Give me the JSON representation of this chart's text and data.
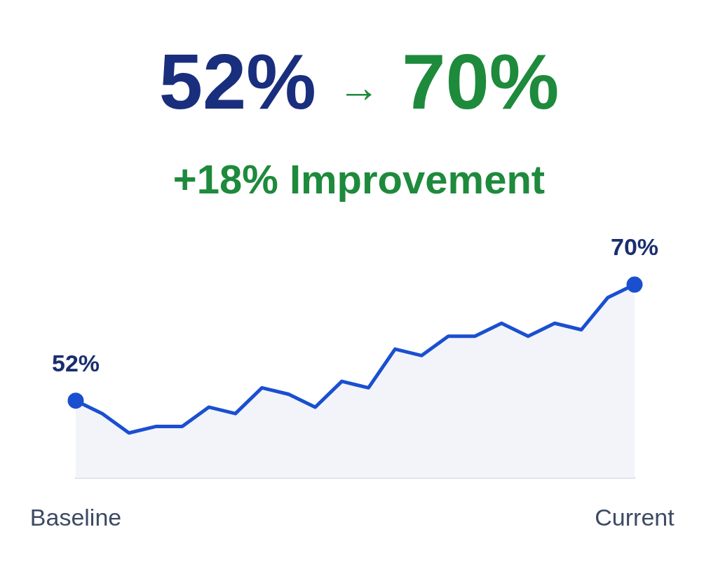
{
  "chart_data": {
    "type": "area",
    "title": "52% → 70%",
    "subtitle": "+18% Improvement",
    "categories": [
      "Baseline",
      null,
      null,
      null,
      null,
      null,
      null,
      null,
      null,
      null,
      null,
      null,
      null,
      null,
      null,
      null,
      null,
      null,
      null,
      null,
      null,
      "Current"
    ],
    "values": [
      52,
      50,
      47,
      48,
      48,
      51,
      50,
      54,
      53,
      51,
      55,
      54,
      60,
      59,
      62,
      62,
      64,
      62,
      64,
      63,
      68,
      70
    ],
    "value_labels": [
      "52%",
      null,
      null,
      null,
      null,
      null,
      null,
      null,
      null,
      null,
      null,
      null,
      null,
      null,
      null,
      null,
      null,
      null,
      null,
      null,
      null,
      "70%"
    ],
    "color": "#1a4fd0",
    "grid": false,
    "legend": false,
    "line_style": "solid",
    "tick_labels": "x"
  }
}
